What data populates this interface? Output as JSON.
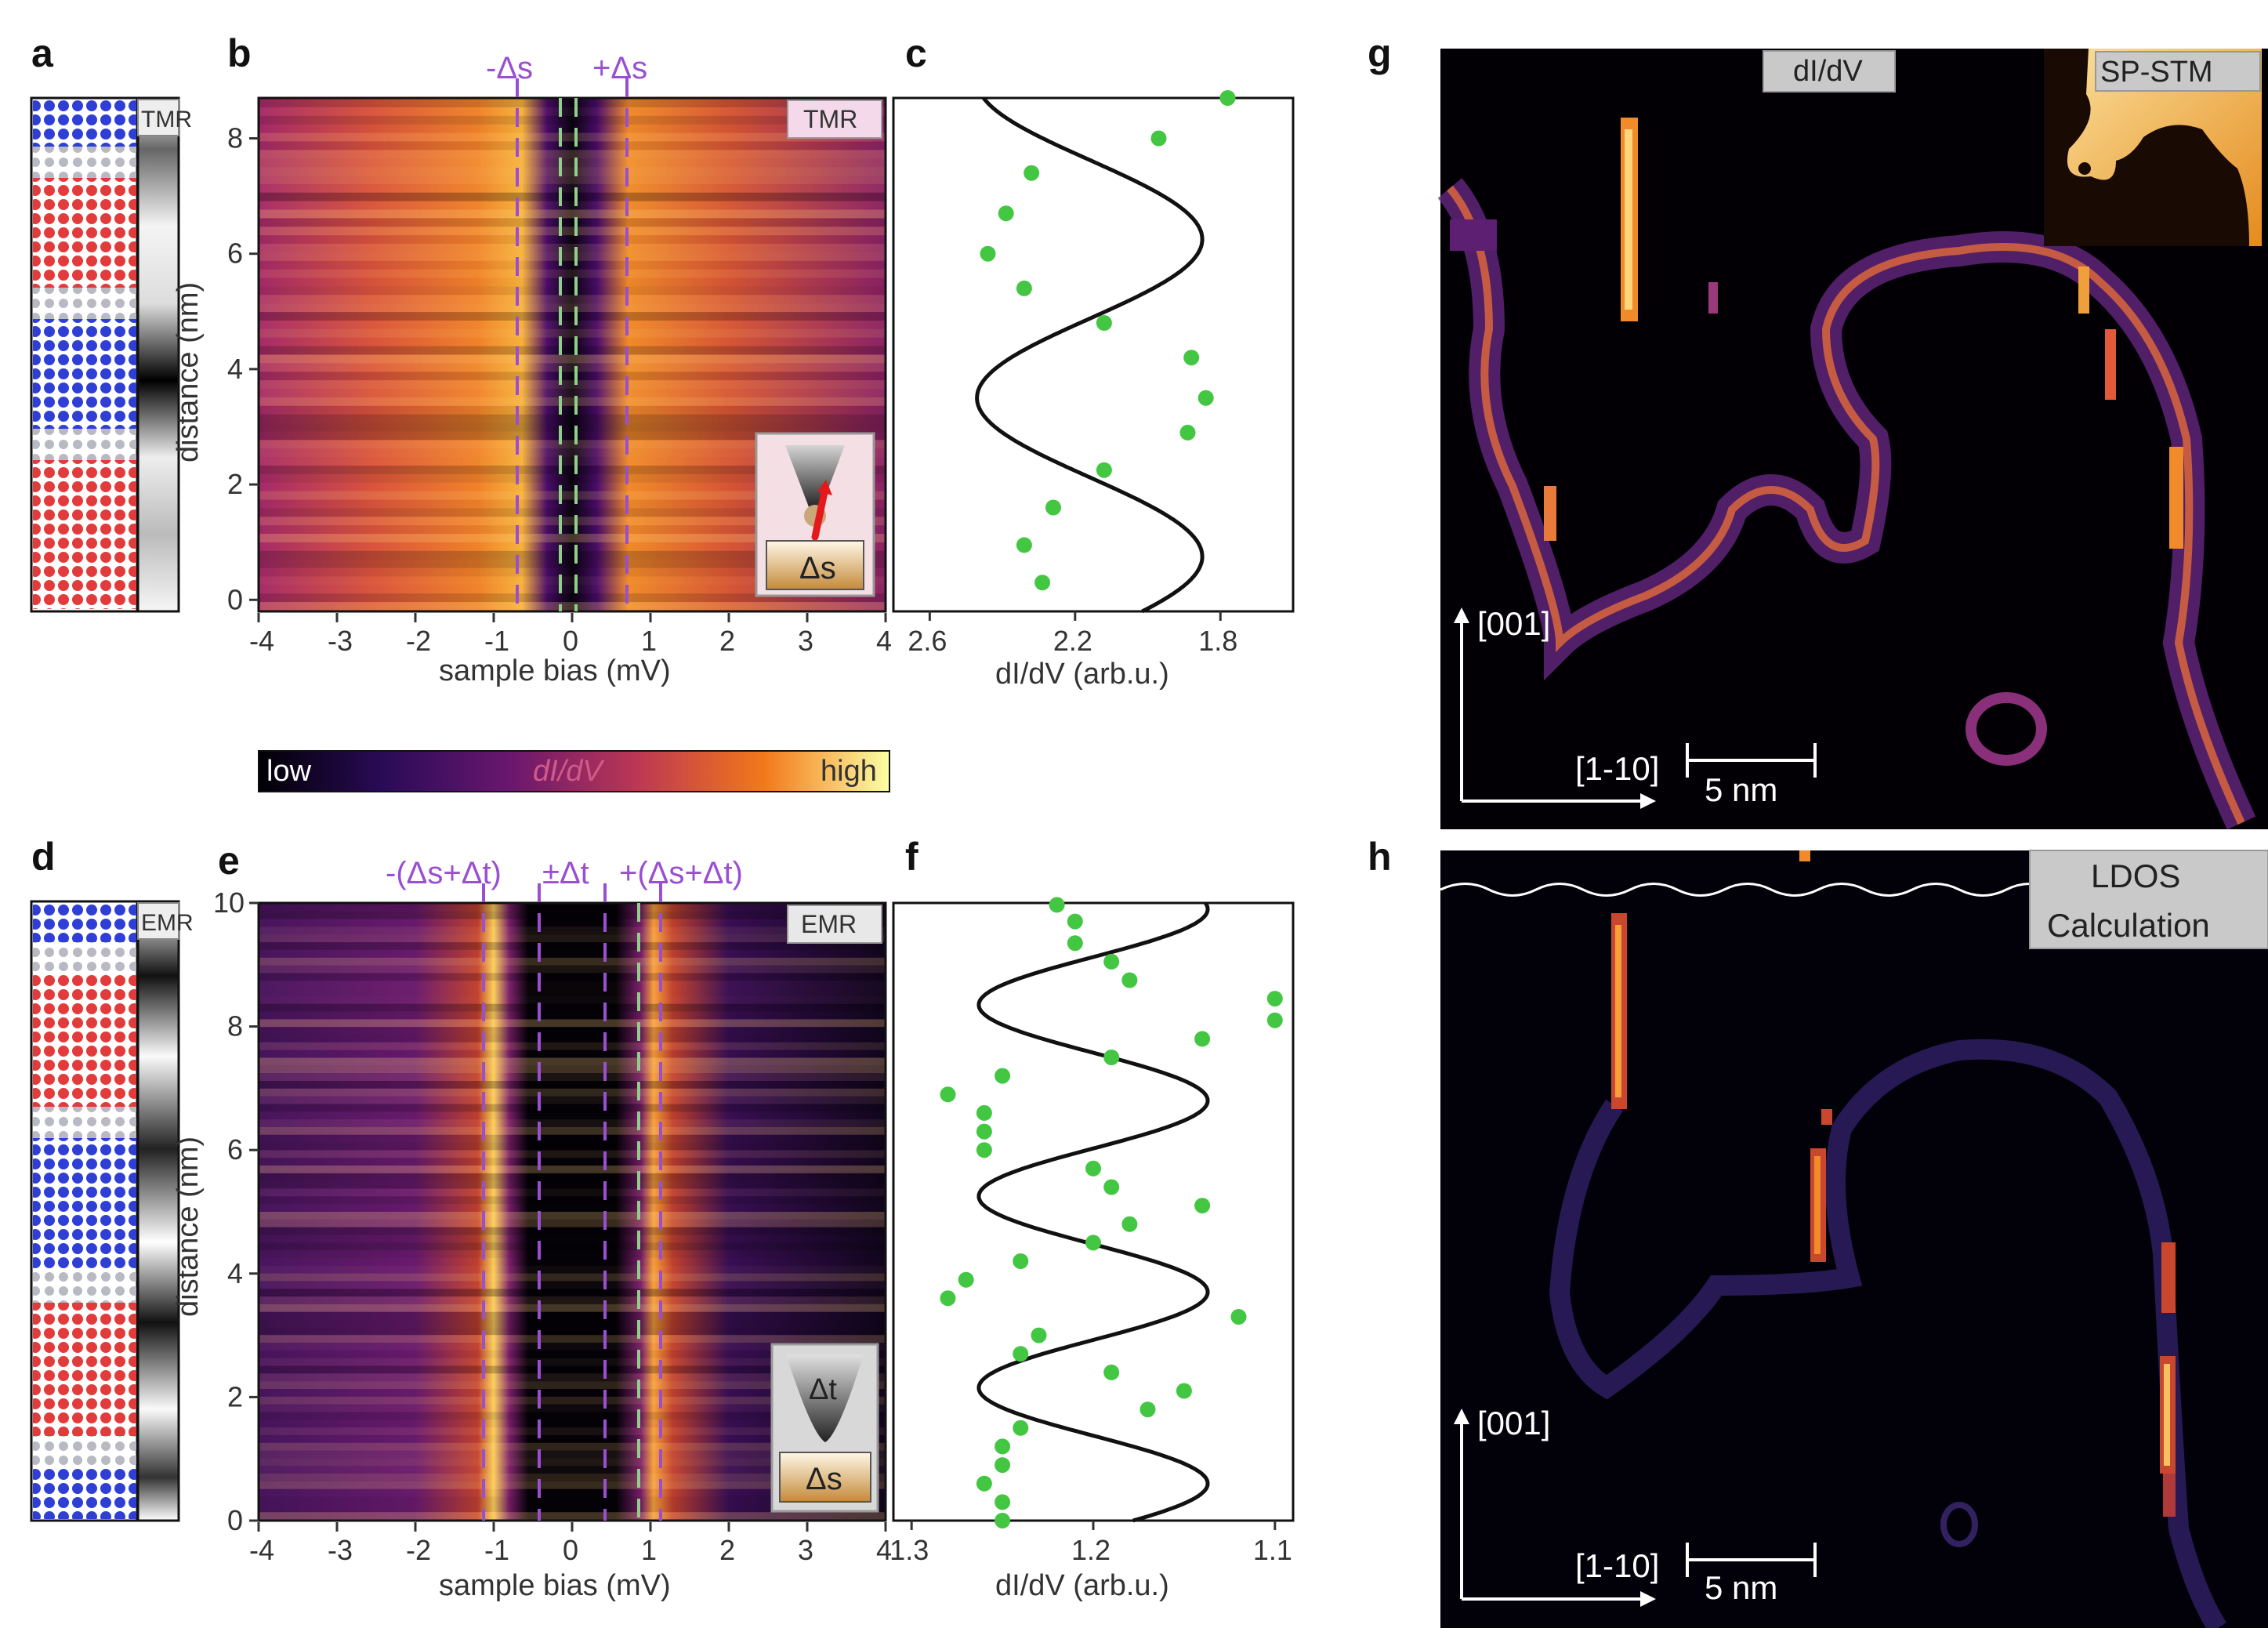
{
  "panel_letters": [
    "a",
    "b",
    "c",
    "d",
    "e",
    "f",
    "g",
    "h"
  ],
  "colorbar": {
    "low": "low",
    "mid": "dI/dV",
    "high": "high"
  },
  "colors": {
    "purple": "#9a4fd2",
    "green": "#8fcf8a",
    "points": "#43c743",
    "magenta_red": "#e23b3b",
    "blue": "#2f3fd6"
  },
  "panel_a": {
    "badge": "TMR"
  },
  "panel_d": {
    "badge": "EMR"
  },
  "panel_b": {
    "badge": "TMR",
    "marker_minus": "-Δs",
    "marker_plus": "+Δs",
    "xlabel": "sample bias (mV)",
    "ylabel": "distance (nm)",
    "xticks": [
      "-4",
      "-3",
      "-2",
      "-1",
      "0",
      "1",
      "2",
      "3",
      "4"
    ],
    "yticks": [
      "0",
      "2",
      "4",
      "6",
      "8"
    ],
    "inset_label": "Δs"
  },
  "panel_e": {
    "badge": "EMR",
    "marker_minus": "-(Δs+Δt)",
    "marker_mid": "±Δt",
    "marker_plus": "+(Δs+Δt)",
    "xlabel": "sample bias (mV)",
    "ylabel": "distance (nm)",
    "xticks": [
      "-4",
      "-3",
      "-2",
      "-1",
      "0",
      "1",
      "2",
      "3",
      "4"
    ],
    "yticks": [
      "0",
      "2",
      "4",
      "6",
      "8",
      "10"
    ],
    "inset_tip": "Δt",
    "inset_sample": "Δs"
  },
  "panel_c": {
    "xlabel": "dI/dV (arb.u.)",
    "xticks": [
      "2.6",
      "2.2",
      "1.8"
    ]
  },
  "panel_f": {
    "xlabel": "dI/dV (arb.u.)",
    "xticks": [
      "1.3",
      "1.2",
      "1.1"
    ]
  },
  "panel_g": {
    "badge": "dI/dV",
    "inset_badge": "SP-STM",
    "dir_up": "[001]",
    "dir_right": "[1-10]",
    "scale": "5 nm"
  },
  "panel_h": {
    "badge_line1": "LDOS",
    "badge_line2": "Calculation",
    "dir_up": "[001]",
    "dir_right": "[1-10]",
    "scale": "5 nm"
  },
  "chart_data": [
    {
      "panel": "c",
      "type": "scatter",
      "xlabel": "dI/dV (arb.u.)",
      "ylabel": "distance (nm)",
      "xlim": [
        2.7,
        1.6
      ],
      "ylim": [
        -0.2,
        8.7
      ],
      "points": [
        [
          1.78,
          8.7
        ],
        [
          1.97,
          8.0
        ],
        [
          2.32,
          7.4
        ],
        [
          2.39,
          6.7
        ],
        [
          2.44,
          6.0
        ],
        [
          2.34,
          5.4
        ],
        [
          2.12,
          4.8
        ],
        [
          1.88,
          4.2
        ],
        [
          1.84,
          3.5
        ],
        [
          1.89,
          2.9
        ],
        [
          2.12,
          2.25
        ],
        [
          2.26,
          1.6
        ],
        [
          2.34,
          0.95
        ],
        [
          2.29,
          0.3
        ]
      ],
      "fit": {
        "center": 2.16,
        "amplitude": 0.31,
        "period_nm": 5.5,
        "phase_ref_nm": 3.5
      }
    },
    {
      "panel": "f",
      "type": "scatter",
      "xlabel": "dI/dV (arb.u.)",
      "ylabel": "distance (nm)",
      "xlim": [
        1.31,
        1.09
      ],
      "ylim": [
        0,
        10
      ],
      "points": [
        [
          1.22,
          9.97
        ],
        [
          1.21,
          9.7
        ],
        [
          1.21,
          9.35
        ],
        [
          1.19,
          9.05
        ],
        [
          1.18,
          8.75
        ],
        [
          1.1,
          8.45
        ],
        [
          1.1,
          8.1
        ],
        [
          1.14,
          7.8
        ],
        [
          1.19,
          7.5
        ],
        [
          1.25,
          7.2
        ],
        [
          1.28,
          6.9
        ],
        [
          1.26,
          6.6
        ],
        [
          1.26,
          6.3
        ],
        [
          1.26,
          6.0
        ],
        [
          1.2,
          5.7
        ],
        [
          1.19,
          5.4
        ],
        [
          1.14,
          5.1
        ],
        [
          1.18,
          4.8
        ],
        [
          1.2,
          4.5
        ],
        [
          1.24,
          4.2
        ],
        [
          1.27,
          3.9
        ],
        [
          1.28,
          3.6
        ],
        [
          1.12,
          3.3
        ],
        [
          1.23,
          3.0
        ],
        [
          1.24,
          2.7
        ],
        [
          1.19,
          2.4
        ],
        [
          1.15,
          2.1
        ],
        [
          1.17,
          1.8
        ],
        [
          1.24,
          1.5
        ],
        [
          1.25,
          1.2
        ],
        [
          1.25,
          0.9
        ],
        [
          1.26,
          0.6
        ],
        [
          1.25,
          0.3
        ],
        [
          1.25,
          0.0
        ]
      ],
      "fit": {
        "center": 1.2,
        "amplitude": 0.063,
        "period_nm": 3.1,
        "phase_ref_nm": 2.15
      }
    }
  ]
}
